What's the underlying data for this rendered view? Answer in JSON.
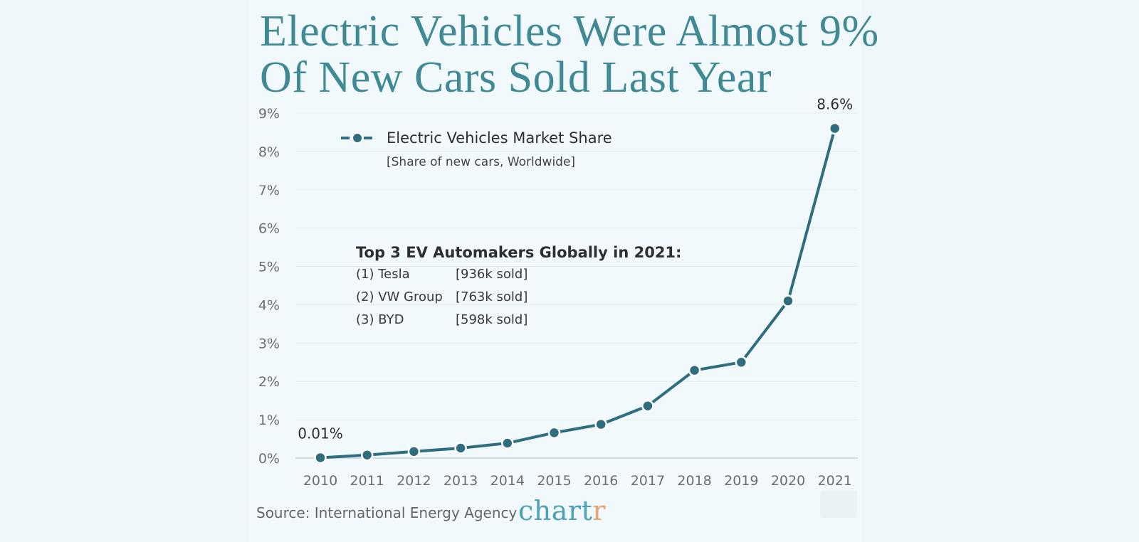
{
  "title": "Electric Vehicles Were Almost 9% Of New Cars Sold Last Year",
  "source": "Source: International Energy Agency",
  "brand": {
    "main": "chart",
    "accent": "r"
  },
  "legend": {
    "name": "Electric Vehicles Market Share",
    "subtitle": "[Share of new cars, Worldwide]"
  },
  "note": {
    "title": "Top 3 EV Automakers Globally in 2021:",
    "rows": [
      {
        "name": "(1) Tesla",
        "value": "[936k sold]"
      },
      {
        "name": "(2) VW Group",
        "value": "[763k sold]"
      },
      {
        "name": "(3) BYD",
        "value": "[598k sold]"
      }
    ]
  },
  "colors": {
    "line": "#2e6e7f",
    "title": "#3f8a94",
    "background": "#f1f9fc",
    "brand": "#4aa0b5",
    "brand_accent": "#e6a370"
  },
  "chart_data": {
    "type": "line",
    "title": "Electric Vehicles Were Almost 9% Of New Cars Sold Last Year",
    "xlabel": "",
    "ylabel": "",
    "x": [
      "2010",
      "2011",
      "2012",
      "2013",
      "2014",
      "2015",
      "2016",
      "2017",
      "2018",
      "2019",
      "2020",
      "2021"
    ],
    "series": [
      {
        "name": "Electric Vehicles Market Share",
        "values": [
          0.01,
          0.08,
          0.17,
          0.26,
          0.39,
          0.66,
          0.88,
          1.36,
          2.29,
          2.5,
          4.1,
          8.6
        ]
      }
    ],
    "ylim": [
      0,
      9
    ],
    "yticks": [
      0,
      1,
      2,
      3,
      4,
      5,
      6,
      7,
      8,
      9
    ],
    "ytick_labels": [
      "0%",
      "1%",
      "2%",
      "3%",
      "4%",
      "5%",
      "6%",
      "7%",
      "8%",
      "9%"
    ],
    "data_labels": [
      {
        "index": 0,
        "text": "0.01%"
      },
      {
        "index": 11,
        "text": "8.6%"
      }
    ],
    "grid": true,
    "legend_position": "top-left"
  }
}
